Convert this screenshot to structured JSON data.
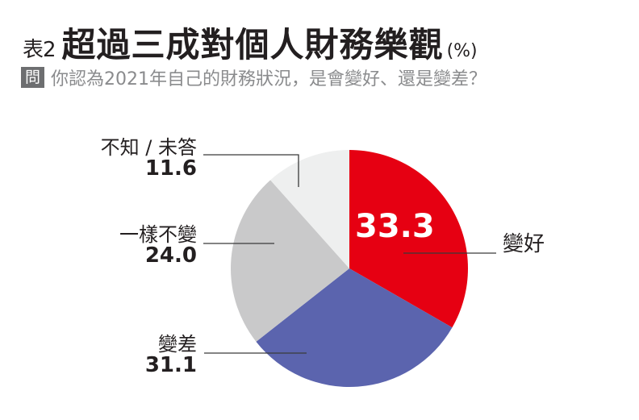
{
  "header": {
    "table_no": "表2",
    "title": "超過三成對個人財務樂觀",
    "unit": "(%)",
    "question_badge": "問",
    "question": "你認為2021年自己的財務狀況，是會變好、還是變差？"
  },
  "labels": {
    "better": {
      "name": "變好",
      "value": "33.3"
    },
    "worse": {
      "name": "變差",
      "value": "31.1"
    },
    "same": {
      "name": "一樣不變",
      "value": "24.0"
    },
    "unknown": {
      "name": "不知 / 未答",
      "value": "11.6"
    }
  },
  "colors": {
    "better": "#e60012",
    "worse": "#5b64ae",
    "same": "#c9c9ca",
    "unknown": "#eeefef"
  },
  "chart_data": {
    "type": "pie",
    "title": "超過三成對個人財務樂觀 (%)",
    "subtitle": "你認為2021年自己的財務狀況，是會變好、還是變差？",
    "categories": [
      "變好",
      "變差",
      "一樣不變",
      "不知 / 未答"
    ],
    "values": [
      33.3,
      31.1,
      24.0,
      11.6
    ],
    "colors": [
      "#e60012",
      "#5b64ae",
      "#c9c9ca",
      "#eeefef"
    ],
    "start_angle": "12 o'clock, clockwise",
    "unit": "%"
  }
}
